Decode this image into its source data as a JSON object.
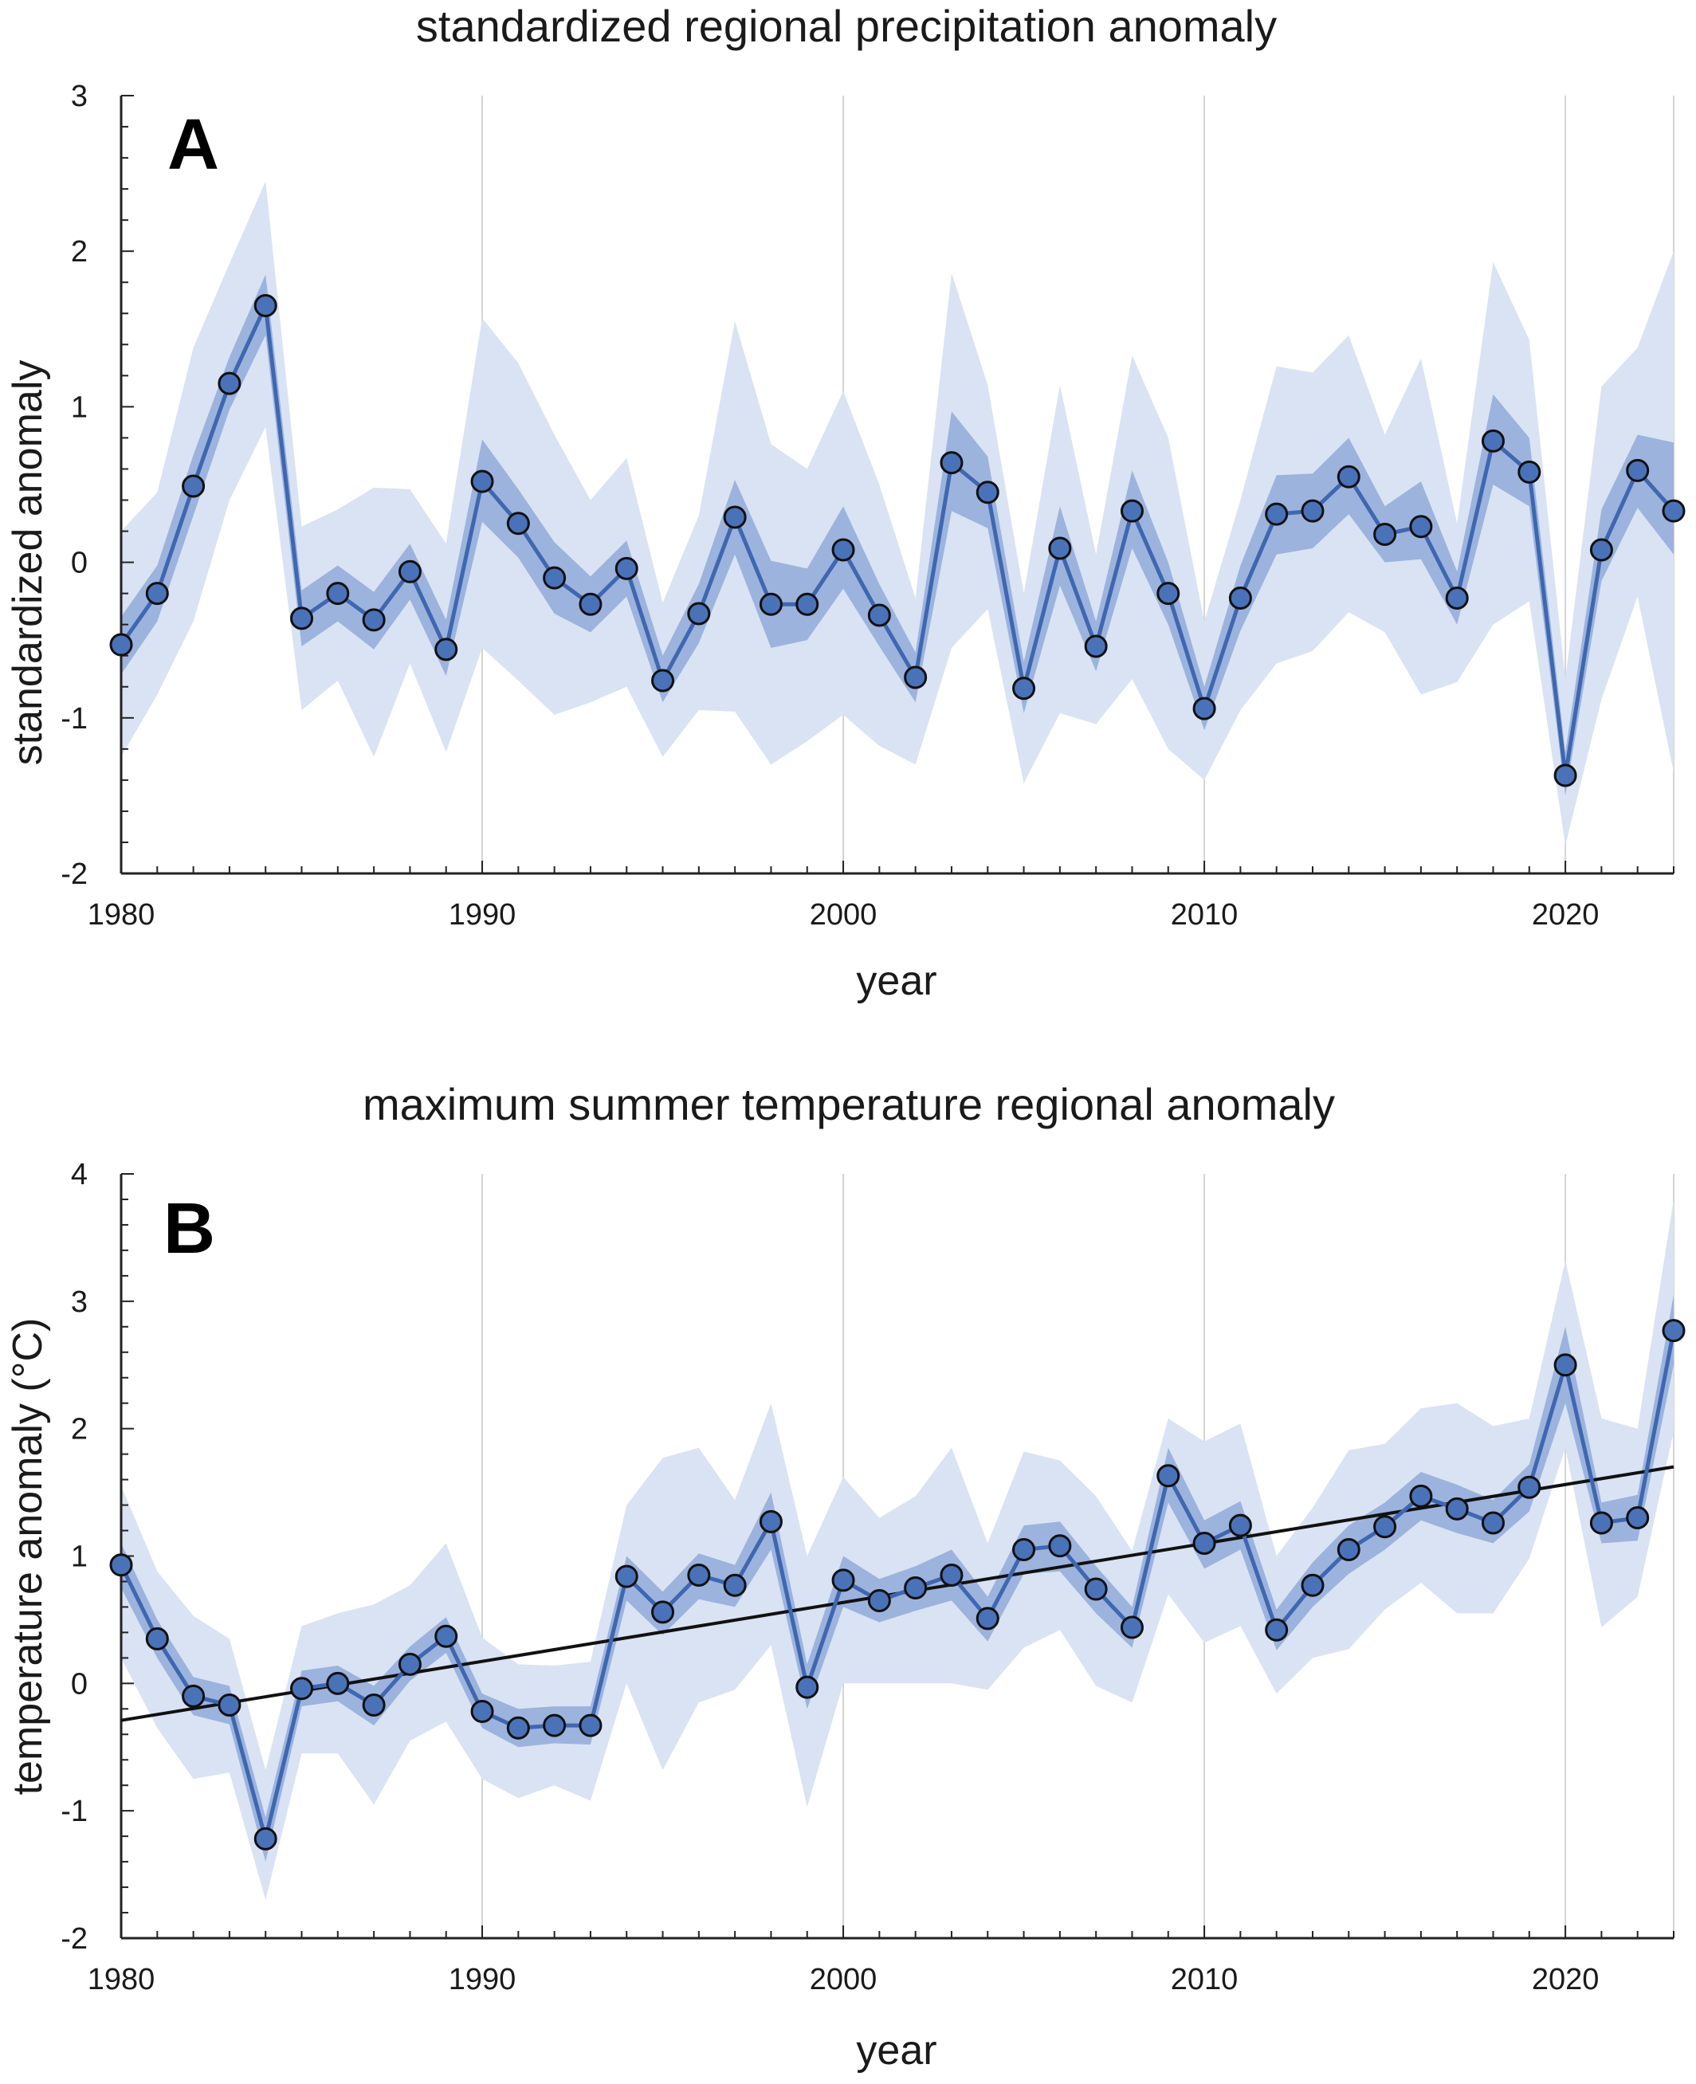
{
  "chart_data": [
    {
      "type": "line",
      "panel_label": "A",
      "title": "standardized regional precipitation anomaly",
      "xlabel": "year",
      "ylabel": "standardized anomaly",
      "xlim": [
        1980,
        2023
      ],
      "ylim": [
        -2,
        3
      ],
      "x_ticks": [
        1980,
        1990,
        2000,
        2010,
        2020
      ],
      "y_ticks": [
        -2,
        -1,
        0,
        1,
        2,
        3
      ],
      "grid": "vertical",
      "colors": {
        "line": "#3f67b1",
        "marker_fill": "#4a72b8",
        "inner_band": "#9cb3dd",
        "outer_band": "#d9e3f3"
      },
      "x": [
        1980,
        1981,
        1982,
        1983,
        1984,
        1985,
        1986,
        1987,
        1988,
        1989,
        1990,
        1991,
        1992,
        1993,
        1994,
        1995,
        1996,
        1997,
        1998,
        1999,
        2000,
        2001,
        2002,
        2003,
        2004,
        2005,
        2006,
        2007,
        2008,
        2009,
        2010,
        2011,
        2012,
        2013,
        2014,
        2015,
        2016,
        2017,
        2018,
        2019,
        2020,
        2021,
        2022,
        2023
      ],
      "series": [
        {
          "values": [
            -0.53,
            -0.2,
            0.49,
            1.15,
            1.65,
            -0.36,
            -0.2,
            -0.37,
            -0.06,
            -0.56,
            0.52,
            0.25,
            -0.1,
            -0.27,
            -0.04,
            -0.76,
            -0.33,
            0.29,
            -0.27,
            -0.27,
            0.08,
            -0.34,
            -0.74,
            0.64,
            0.45,
            -0.81,
            0.09,
            -0.54,
            0.33,
            -0.2,
            -0.94,
            -0.23,
            0.31,
            0.33,
            0.55,
            0.18,
            0.23,
            -0.23,
            0.78,
            0.58,
            -1.37,
            0.08,
            0.59,
            0.33
          ]
        }
      ],
      "inner_band": {
        "lower": [
          -0.72,
          -0.38,
          0.3,
          0.98,
          1.46,
          -0.54,
          -0.38,
          -0.56,
          -0.24,
          -0.73,
          0.26,
          0.03,
          -0.33,
          -0.45,
          -0.22,
          -0.9,
          -0.52,
          0.05,
          -0.55,
          -0.5,
          -0.17,
          -0.54,
          -0.9,
          0.33,
          0.22,
          -0.97,
          -0.15,
          -0.7,
          0.09,
          -0.4,
          -1.08,
          -0.44,
          0.05,
          0.09,
          0.31,
          0.0,
          0.02,
          -0.4,
          0.5,
          0.36,
          -1.5,
          -0.12,
          0.35,
          0.05
        ],
        "upper": [
          -0.35,
          -0.02,
          0.69,
          1.32,
          1.85,
          -0.18,
          -0.02,
          -0.19,
          0.12,
          -0.37,
          0.79,
          0.47,
          0.13,
          -0.09,
          0.14,
          -0.6,
          -0.14,
          0.53,
          0.01,
          -0.04,
          0.36,
          -0.14,
          -0.58,
          0.97,
          0.68,
          -0.64,
          0.36,
          -0.38,
          0.59,
          0.0,
          -0.8,
          -0.02,
          0.56,
          0.57,
          0.8,
          0.36,
          0.52,
          -0.06,
          1.08,
          0.8,
          -1.22,
          0.34,
          0.82,
          0.77
        ]
      },
      "outer_band": {
        "lower": [
          -1.25,
          -0.85,
          -0.38,
          0.4,
          0.87,
          -0.95,
          -0.76,
          -1.25,
          -0.65,
          -1.22,
          -0.55,
          -0.76,
          -0.98,
          -0.9,
          -0.8,
          -1.25,
          -0.95,
          -0.96,
          -1.3,
          -1.15,
          -0.98,
          -1.18,
          -1.3,
          -0.55,
          -0.3,
          -1.42,
          -0.97,
          -1.04,
          -0.75,
          -1.2,
          -1.4,
          -0.95,
          -0.65,
          -0.57,
          -0.32,
          -0.45,
          -0.85,
          -0.77,
          -0.4,
          -0.25,
          -1.82,
          -0.88,
          -0.22,
          -1.35
        ],
        "upper": [
          0.2,
          0.45,
          1.38,
          1.92,
          2.45,
          0.23,
          0.34,
          0.48,
          0.47,
          0.12,
          1.57,
          1.28,
          0.82,
          0.4,
          0.67,
          -0.26,
          0.3,
          1.55,
          0.76,
          0.6,
          1.1,
          0.5,
          -0.23,
          1.86,
          1.14,
          -0.2,
          1.14,
          0.05,
          1.33,
          0.8,
          -0.38,
          0.4,
          1.26,
          1.22,
          1.46,
          0.82,
          1.31,
          0.25,
          1.93,
          1.43,
          -0.75,
          1.13,
          1.38,
          2.0
        ]
      }
    },
    {
      "type": "line",
      "panel_label": "B",
      "title": "maximum summer temperature regional anomaly",
      "xlabel": "year",
      "ylabel": "temperature anomaly (°C)",
      "xlim": [
        1980,
        2023
      ],
      "ylim": [
        -2,
        4
      ],
      "x_ticks": [
        1980,
        1990,
        2000,
        2010,
        2020
      ],
      "y_ticks": [
        -2,
        -1,
        0,
        1,
        2,
        3,
        4
      ],
      "grid": "vertical",
      "colors": {
        "line": "#3f67b1",
        "marker_fill": "#4a72b8",
        "inner_band": "#9cb3dd",
        "outer_band": "#d9e3f3",
        "trend": "#111111"
      },
      "x": [
        1980,
        1981,
        1982,
        1983,
        1984,
        1985,
        1986,
        1987,
        1988,
        1989,
        1990,
        1991,
        1992,
        1993,
        1994,
        1995,
        1996,
        1997,
        1998,
        1999,
        2000,
        2001,
        2002,
        2003,
        2004,
        2005,
        2006,
        2007,
        2008,
        2009,
        2010,
        2011,
        2012,
        2013,
        2014,
        2015,
        2016,
        2017,
        2018,
        2019,
        2020,
        2021,
        2022,
        2023
      ],
      "series": [
        {
          "values": [
            0.93,
            0.35,
            -0.1,
            -0.17,
            -1.22,
            -0.04,
            0.0,
            -0.17,
            0.15,
            0.37,
            -0.22,
            -0.35,
            -0.33,
            -0.33,
            0.84,
            0.56,
            0.85,
            0.77,
            1.27,
            -0.03,
            0.81,
            0.65,
            0.75,
            0.85,
            0.51,
            1.05,
            1.08,
            0.74,
            0.44,
            1.63,
            1.1,
            1.24,
            0.42,
            0.77,
            1.05,
            1.23,
            1.47,
            1.37,
            1.26,
            1.54,
            2.5,
            1.26,
            1.3,
            2.77
          ]
        }
      ],
      "trend": {
        "x": [
          1980,
          2023
        ],
        "y": [
          -0.29,
          1.7
        ]
      },
      "inner_band": {
        "lower": [
          0.75,
          0.2,
          -0.25,
          -0.32,
          -1.4,
          -0.18,
          -0.14,
          -0.33,
          0.02,
          0.24,
          -0.35,
          -0.5,
          -0.47,
          -0.48,
          0.65,
          0.38,
          0.66,
          0.6,
          1.05,
          -0.2,
          0.6,
          0.48,
          0.57,
          0.65,
          0.33,
          0.86,
          0.88,
          0.55,
          0.28,
          1.42,
          0.9,
          1.05,
          0.26,
          0.6,
          0.86,
          1.05,
          1.28,
          1.18,
          1.1,
          1.35,
          2.2,
          1.1,
          1.12,
          2.5
        ],
        "upper": [
          1.1,
          0.5,
          0.05,
          -0.02,
          -1.05,
          0.1,
          0.14,
          -0.02,
          0.29,
          0.52,
          -0.08,
          -0.2,
          -0.18,
          -0.18,
          1.0,
          0.72,
          1.02,
          0.93,
          1.5,
          0.15,
          1.0,
          0.82,
          0.92,
          1.05,
          0.68,
          1.24,
          1.27,
          0.92,
          0.6,
          1.85,
          1.28,
          1.43,
          0.58,
          0.95,
          1.24,
          1.42,
          1.66,
          1.56,
          1.44,
          1.72,
          2.8,
          1.42,
          1.48,
          3.05
        ]
      },
      "outer_band": {
        "lower": [
          0.2,
          -0.35,
          -0.75,
          -0.7,
          -1.7,
          -0.55,
          -0.55,
          -0.95,
          -0.45,
          -0.3,
          -0.75,
          -0.9,
          -0.8,
          -0.92,
          0.0,
          -0.68,
          -0.15,
          -0.05,
          0.3,
          -0.97,
          0.0,
          0.0,
          0.0,
          0.0,
          -0.05,
          0.28,
          0.42,
          -0.02,
          -0.15,
          0.7,
          0.32,
          0.45,
          -0.08,
          0.2,
          0.27,
          0.58,
          0.79,
          0.55,
          0.55,
          0.98,
          1.85,
          0.44,
          0.68,
          1.98
        ],
        "upper": [
          1.55,
          0.88,
          0.53,
          0.35,
          -0.68,
          0.45,
          0.55,
          0.62,
          0.77,
          1.1,
          0.36,
          0.15,
          0.14,
          0.17,
          1.4,
          1.77,
          1.85,
          1.44,
          2.2,
          1.0,
          1.62,
          1.3,
          1.47,
          1.85,
          1.1,
          1.82,
          1.75,
          1.47,
          1.04,
          2.08,
          1.9,
          2.04,
          1.0,
          1.38,
          1.83,
          1.88,
          2.16,
          2.2,
          2.02,
          2.08,
          3.32,
          2.08,
          2.0,
          3.8
        ]
      }
    }
  ]
}
